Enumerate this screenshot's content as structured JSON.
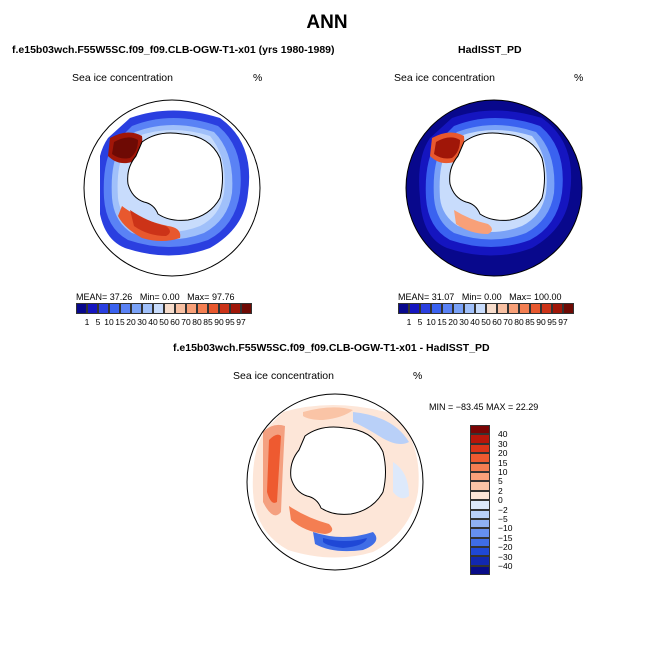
{
  "main_title": "ANN",
  "panel_left": {
    "case_title": "f.e15b03wch.F55W5SC.f09_f09.CLB-OGW-T1-x01 (yrs 1980-1989)",
    "variable": "Sea ice concentration",
    "units": "%",
    "stats": {
      "mean_label": "MEAN=",
      "mean": "37.26",
      "min_label": "Min=",
      "min": "0.00",
      "max_label": "Max=",
      "max": "97.76"
    }
  },
  "panel_right": {
    "case_title": "HadISST_PD",
    "variable": "Sea ice concentration",
    "units": "%",
    "stats": {
      "mean_label": "MEAN=",
      "mean": "31.07",
      "min_label": "Min=",
      "min": "0.00",
      "max_label": "Max=",
      "max": "100.00"
    }
  },
  "panel_diff": {
    "case_title": "f.e15b03wch.F55W5SC.f09_f09.CLB-OGW-T1-x01 - HadISST_PD",
    "variable": "Sea ice concentration",
    "units": "%",
    "minmax_text": "MIN = −83.45  MAX =  22.29"
  },
  "colorbar_conc": {
    "labels": [
      "1",
      "5",
      "10",
      "15",
      "20",
      "30",
      "40",
      "50",
      "60",
      "70",
      "80",
      "85",
      "90",
      "95",
      "97"
    ],
    "colors": [
      "#08088c",
      "#1515c0",
      "#2a3fe0",
      "#3a62f0",
      "#5a82f5",
      "#7aa2f7",
      "#a0c0fa",
      "#c8dcfc",
      "#f6dccb",
      "#f8c0a2",
      "#f8a078",
      "#f47f52",
      "#e8582e",
      "#cc3318",
      "#a01608",
      "#6e0a04"
    ]
  },
  "colorbar_diff": {
    "labels": [
      "40",
      "30",
      "20",
      "15",
      "10",
      "5",
      "2",
      "0",
      "−2",
      "−5",
      "−10",
      "−15",
      "−20",
      "−30",
      "−40"
    ],
    "colors": [
      "#7a0404",
      "#b8160a",
      "#dc3418",
      "#ee5a30",
      "#f47e52",
      "#f8a07a",
      "#fac4a6",
      "#fde6d8",
      "#dde9fb",
      "#b9d0f8",
      "#8fb2f4",
      "#6690ee",
      "#3f6de6",
      "#1f48d6",
      "#1228b0",
      "#080c88"
    ]
  }
}
